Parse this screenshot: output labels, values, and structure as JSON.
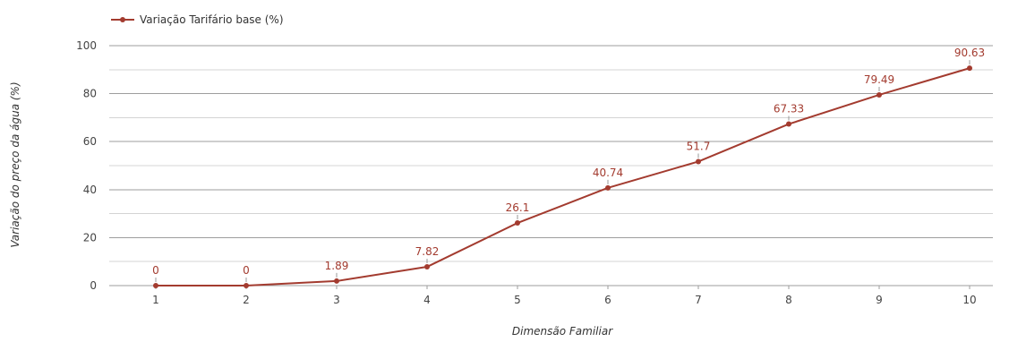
{
  "chart_data": {
    "type": "line",
    "title": "",
    "xlabel": "Dimensão Familiar",
    "ylabel": "Variação do preço da água (%)",
    "ylim": [
      0,
      100
    ],
    "yticks": [
      0,
      20,
      40,
      60,
      80,
      100
    ],
    "grid": true,
    "legend_position": "top-left",
    "categories": [
      "1",
      "2",
      "3",
      "4",
      "5",
      "6",
      "7",
      "8",
      "9",
      "10"
    ],
    "series": [
      {
        "name": "Variação Tarifário base (%)",
        "color": "#a33b2f",
        "values": [
          0,
          0,
          1.89,
          7.82,
          26.1,
          40.74,
          51.7,
          67.33,
          79.49,
          90.63
        ],
        "labels": [
          "0",
          "0",
          "1.89",
          "7.82",
          "26.1",
          "40.74",
          "51.7",
          "67.33",
          "79.49",
          "90.63"
        ]
      }
    ]
  }
}
